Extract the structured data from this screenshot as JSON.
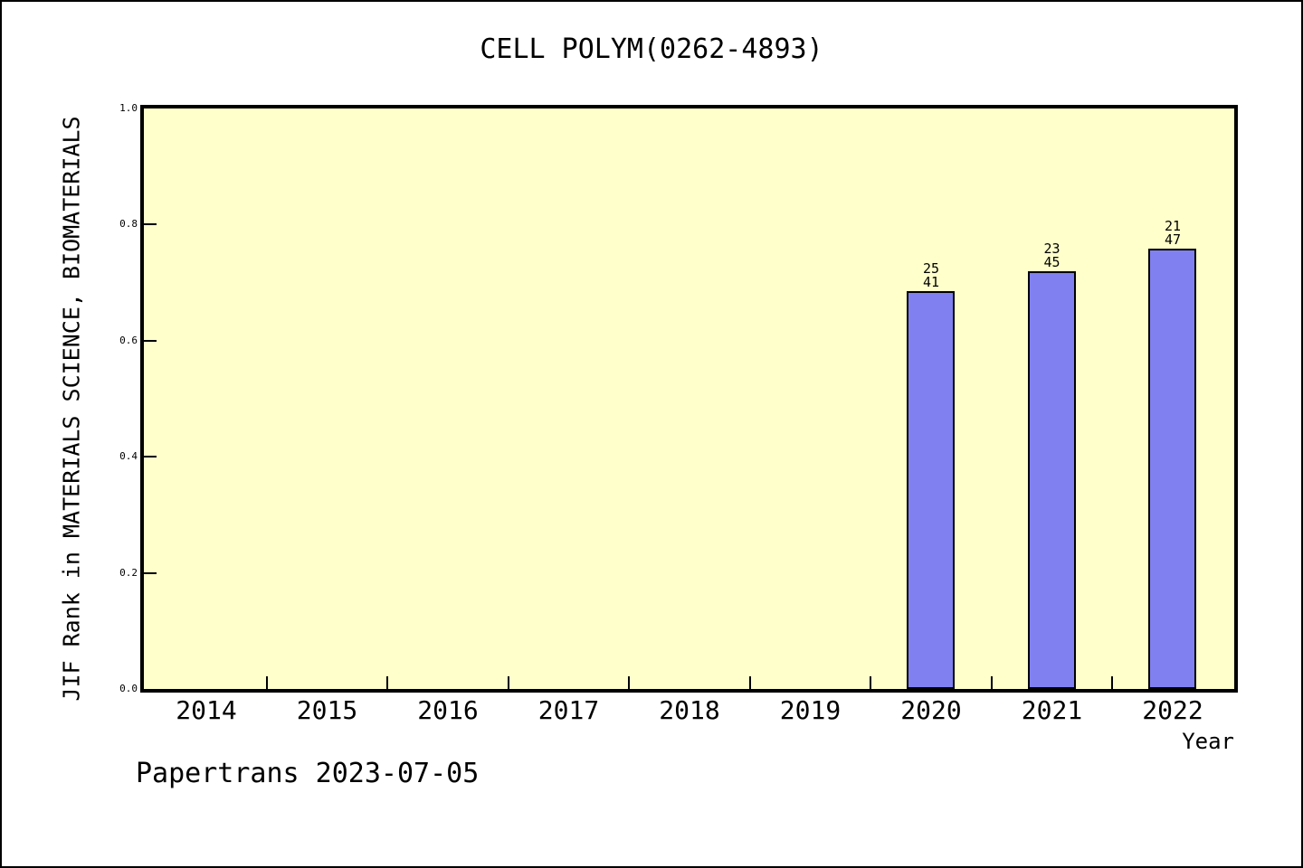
{
  "chart_data": {
    "type": "bar",
    "title": "CELL POLYM(0262-4893)",
    "xlabel": "Year",
    "ylabel": "JIF Rank in MATERIALS SCIENCE, BIOMATERIALS",
    "footer": "Papertrans 2023-07-05",
    "categories": [
      2014,
      2015,
      2016,
      2017,
      2018,
      2019,
      2020,
      2021,
      2022
    ],
    "ylim": [
      0.0,
      1.0
    ],
    "ytick_labels": [
      "0.0",
      "0.2",
      "0.4",
      "0.6",
      "0.8",
      "1.0"
    ],
    "grid": false,
    "legend": "none",
    "bars": [
      {
        "year": 2020,
        "rank": 25,
        "total": 41,
        "height_fraction": 0.686
      },
      {
        "year": 2021,
        "rank": 23,
        "total": 45,
        "height_fraction": 0.72
      },
      {
        "year": 2022,
        "rank": 21,
        "total": 47,
        "height_fraction": 0.759
      }
    ],
    "colors": {
      "bar_fill": "#8080f0",
      "bar_border": "#000000",
      "plot_bg": "#ffffcc",
      "page_bg": "#ffffff",
      "axis": "#000000"
    }
  }
}
